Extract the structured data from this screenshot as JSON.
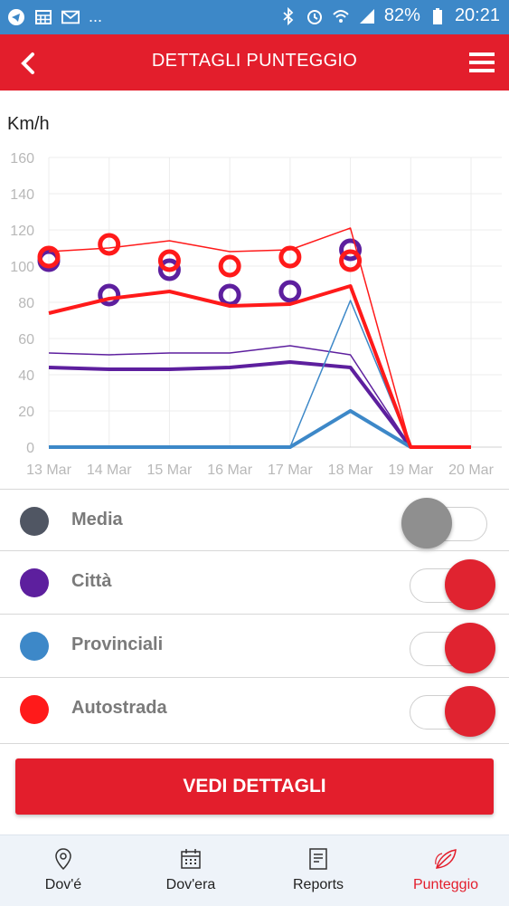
{
  "status_bar": {
    "dots": "...",
    "battery": "82%",
    "time": "20:21"
  },
  "header": {
    "title": "DETTAGLI PUNTEGGIO"
  },
  "chart_data": {
    "type": "line",
    "ylabel": "Km/h",
    "ylim": [
      0,
      160
    ],
    "yticks": [
      0,
      20,
      40,
      60,
      80,
      100,
      120,
      140,
      160
    ],
    "categories": [
      "13 Mar",
      "14 Mar",
      "15 Mar",
      "16 Mar",
      "17 Mar",
      "18 Mar",
      "19 Mar",
      "20 Mar"
    ],
    "grid": true,
    "series": [
      {
        "name": "Città",
        "kind": "average",
        "color": "#5d1f9e",
        "values": [
          44,
          43,
          43,
          44,
          47,
          44,
          0,
          null
        ]
      },
      {
        "name": "Città",
        "kind": "max",
        "color": "#5d1f9e",
        "values": [
          52,
          51,
          52,
          52,
          56,
          51,
          0,
          null
        ]
      },
      {
        "name": "Città",
        "kind": "points",
        "color": "#5d1f9e",
        "values": [
          103,
          84,
          98,
          84,
          86,
          109,
          null,
          null
        ]
      },
      {
        "name": "Provinciali",
        "kind": "average",
        "color": "#3d88c8",
        "values": [
          0,
          0,
          0,
          0,
          0,
          20,
          0,
          null
        ]
      },
      {
        "name": "Provinciali",
        "kind": "max",
        "color": "#3d88c8",
        "values": [
          0,
          0,
          0,
          0,
          0,
          81,
          0,
          null
        ]
      },
      {
        "name": "Autostrada",
        "kind": "average",
        "color": "#ff1a1a",
        "values": [
          74,
          82,
          86,
          78,
          79,
          89,
          0,
          0
        ]
      },
      {
        "name": "Autostrada",
        "kind": "max",
        "color": "#ff1a1a",
        "values": [
          108,
          110,
          114,
          108,
          109,
          121,
          0,
          0
        ]
      },
      {
        "name": "Autostrada",
        "kind": "points",
        "color": "#ff1a1a",
        "values": [
          105,
          112,
          103,
          100,
          105,
          103,
          null,
          null
        ]
      }
    ]
  },
  "legend": [
    {
      "label": "Media",
      "color": "#505663",
      "toggle_on": false
    },
    {
      "label": "Città",
      "color": "#5d1f9e",
      "toggle_on": true
    },
    {
      "label": "Provinciali",
      "color": "#3d88c8",
      "toggle_on": true
    },
    {
      "label": "Autostrada",
      "color": "#ff1a1a",
      "toggle_on": true
    }
  ],
  "cta": {
    "label": "VEDI DETTAGLI"
  },
  "nav": [
    {
      "label": "Dov'é",
      "icon": "location-pin-icon",
      "active": false
    },
    {
      "label": "Dov'era",
      "icon": "calendar-icon",
      "active": false
    },
    {
      "label": "Reports",
      "icon": "report-icon",
      "active": false
    },
    {
      "label": "Punteggio",
      "icon": "leaf-icon",
      "active": true
    }
  ],
  "colors": {
    "brand": "#e31e2c",
    "status_bar": "#3d88c8"
  }
}
